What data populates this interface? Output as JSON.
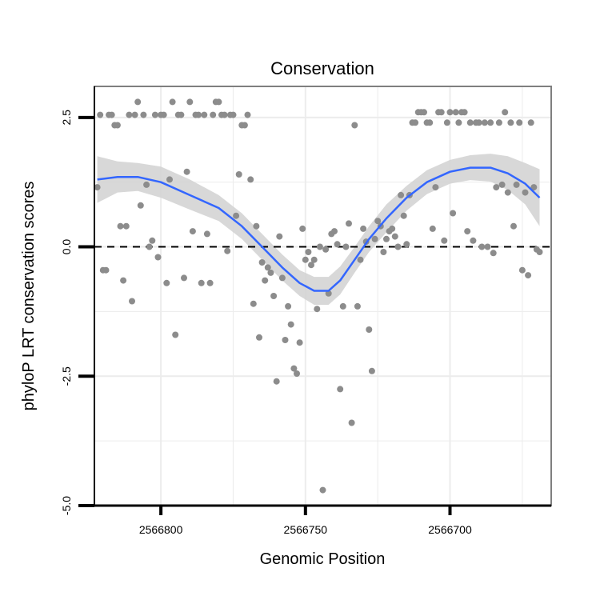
{
  "chart_data": {
    "type": "scatter",
    "title": "Conservation",
    "xlabel": "Genomic Position",
    "ylabel": "phyloP LRT conservation scores",
    "x_reversed": true,
    "xlim": [
      2566823,
      2566665
    ],
    "ylim": [
      -5.0,
      3.1
    ],
    "x_ticks": [
      2566800,
      2566750,
      2566700
    ],
    "x_tick_labels": [
      "2566800",
      "2566750",
      "2566700"
    ],
    "y_ticks": [
      2.5,
      0.0,
      -2.5,
      -5.0
    ],
    "y_tick_labels": [
      "2.5",
      "0.0",
      "-2.5",
      "-5.0"
    ],
    "grid": true,
    "reference_line_y": 0.0,
    "colors": {
      "points": "#8c8c8c",
      "smooth_line": "#3366ff",
      "ribbon": "#d4d4d4",
      "frame": "#7f7f7f",
      "grid": "#ececec"
    },
    "points": [
      [
        2566822,
        1.15
      ],
      [
        2566821,
        2.55
      ],
      [
        2566820,
        -0.45
      ],
      [
        2566819,
        -0.45
      ],
      [
        2566818,
        2.55
      ],
      [
        2566817,
        2.55
      ],
      [
        2566816,
        2.35
      ],
      [
        2566815,
        2.35
      ],
      [
        2566814,
        0.4
      ],
      [
        2566813,
        -0.65
      ],
      [
        2566812,
        0.4
      ],
      [
        2566811,
        2.55
      ],
      [
        2566810,
        -1.05
      ],
      [
        2566809,
        2.55
      ],
      [
        2566808,
        2.8
      ],
      [
        2566807,
        0.8
      ],
      [
        2566806,
        2.55
      ],
      [
        2566805,
        1.2
      ],
      [
        2566804,
        0.0
      ],
      [
        2566803,
        0.12
      ],
      [
        2566802,
        2.55
      ],
      [
        2566801,
        -0.2
      ],
      [
        2566800,
        2.55
      ],
      [
        2566799,
        2.55
      ],
      [
        2566798,
        -0.7
      ],
      [
        2566797,
        1.3
      ],
      [
        2566796,
        2.8
      ],
      [
        2566795,
        -1.7
      ],
      [
        2566794,
        2.55
      ],
      [
        2566793,
        2.55
      ],
      [
        2566792,
        -0.6
      ],
      [
        2566791,
        1.45
      ],
      [
        2566790,
        2.8
      ],
      [
        2566789,
        0.3
      ],
      [
        2566788,
        2.55
      ],
      [
        2566787,
        2.55
      ],
      [
        2566786,
        -0.7
      ],
      [
        2566785,
        2.55
      ],
      [
        2566784,
        0.25
      ],
      [
        2566783,
        -0.7
      ],
      [
        2566782,
        2.55
      ],
      [
        2566781,
        2.8
      ],
      [
        2566780,
        2.8
      ],
      [
        2566779,
        2.55
      ],
      [
        2566778,
        2.55
      ],
      [
        2566777,
        -0.08
      ],
      [
        2566776,
        2.55
      ],
      [
        2566775,
        2.55
      ],
      [
        2566774,
        0.6
      ],
      [
        2566773,
        1.4
      ],
      [
        2566772,
        2.35
      ],
      [
        2566771,
        2.35
      ],
      [
        2566770,
        2.55
      ],
      [
        2566769,
        1.3
      ],
      [
        2566768,
        -1.1
      ],
      [
        2566767,
        0.4
      ],
      [
        2566766,
        -1.75
      ],
      [
        2566765,
        -0.3
      ],
      [
        2566764,
        -0.65
      ],
      [
        2566763,
        -0.4
      ],
      [
        2566762,
        -0.5
      ],
      [
        2566761,
        -0.95
      ],
      [
        2566760,
        -2.6
      ],
      [
        2566759,
        0.2
      ],
      [
        2566758,
        -0.6
      ],
      [
        2566757,
        -1.8
      ],
      [
        2566756,
        -1.15
      ],
      [
        2566755,
        -1.5
      ],
      [
        2566754,
        -2.35
      ],
      [
        2566753,
        -2.45
      ],
      [
        2566752,
        -1.85
      ],
      [
        2566751,
        0.35
      ],
      [
        2566750,
        -0.25
      ],
      [
        2566749,
        -0.1
      ],
      [
        2566748,
        -0.35
      ],
      [
        2566747,
        -0.25
      ],
      [
        2566746,
        -1.2
      ],
      [
        2566745,
        0.0
      ],
      [
        2566744,
        -4.7
      ],
      [
        2566743,
        -0.05
      ],
      [
        2566742,
        -0.9
      ],
      [
        2566741,
        0.25
      ],
      [
        2566740,
        0.3
      ],
      [
        2566739,
        0.05
      ],
      [
        2566738,
        -2.75
      ],
      [
        2566737,
        -1.15
      ],
      [
        2566736,
        0.0
      ],
      [
        2566735,
        0.45
      ],
      [
        2566734,
        -3.4
      ],
      [
        2566733,
        2.35
      ],
      [
        2566732,
        -1.15
      ],
      [
        2566731,
        -0.25
      ],
      [
        2566730,
        0.35
      ],
      [
        2566729,
        0.1
      ],
      [
        2566728,
        -1.6
      ],
      [
        2566727,
        -2.4
      ],
      [
        2566726,
        0.15
      ],
      [
        2566725,
        0.5
      ],
      [
        2566724,
        0.4
      ],
      [
        2566723,
        -0.1
      ],
      [
        2566722,
        0.15
      ],
      [
        2566721,
        0.3
      ],
      [
        2566720,
        0.35
      ],
      [
        2566719,
        0.2
      ],
      [
        2566718,
        0.0
      ],
      [
        2566717,
        1.0
      ],
      [
        2566716,
        0.6
      ],
      [
        2566715,
        0.05
      ],
      [
        2566714,
        1.0
      ],
      [
        2566713,
        2.4
      ],
      [
        2566712,
        2.4
      ],
      [
        2566711,
        2.6
      ],
      [
        2566710,
        2.6
      ],
      [
        2566709,
        2.6
      ],
      [
        2566708,
        2.4
      ],
      [
        2566707,
        2.4
      ],
      [
        2566706,
        0.35
      ],
      [
        2566705,
        1.15
      ],
      [
        2566704,
        2.6
      ],
      [
        2566703,
        2.6
      ],
      [
        2566702,
        0.12
      ],
      [
        2566701,
        2.4
      ],
      [
        2566700,
        2.6
      ],
      [
        2566699,
        0.65
      ],
      [
        2566698,
        2.6
      ],
      [
        2566697,
        2.4
      ],
      [
        2566696,
        2.6
      ],
      [
        2566695,
        2.6
      ],
      [
        2566694,
        0.3
      ],
      [
        2566693,
        2.4
      ],
      [
        2566692,
        0.12
      ],
      [
        2566691,
        2.4
      ],
      [
        2566690,
        2.4
      ],
      [
        2566689,
        0.0
      ],
      [
        2566688,
        2.4
      ],
      [
        2566687,
        0.0
      ],
      [
        2566686,
        2.4
      ],
      [
        2566685,
        -0.12
      ],
      [
        2566684,
        1.15
      ],
      [
        2566683,
        2.4
      ],
      [
        2566682,
        1.2
      ],
      [
        2566681,
        2.6
      ],
      [
        2566680,
        1.05
      ],
      [
        2566679,
        2.4
      ],
      [
        2566678,
        0.4
      ],
      [
        2566677,
        1.2
      ],
      [
        2566676,
        2.4
      ],
      [
        2566675,
        -0.45
      ],
      [
        2566674,
        1.05
      ],
      [
        2566673,
        -0.55
      ],
      [
        2566672,
        2.4
      ],
      [
        2566671,
        1.15
      ],
      [
        2566670,
        -0.05
      ],
      [
        2566669,
        -0.1
      ]
    ],
    "smooth_line": [
      [
        2566822,
        1.3
      ],
      [
        2566815,
        1.35
      ],
      [
        2566808,
        1.35
      ],
      [
        2566800,
        1.25
      ],
      [
        2566790,
        1.0
      ],
      [
        2566780,
        0.75
      ],
      [
        2566772,
        0.4
      ],
      [
        2566765,
        0.0
      ],
      [
        2566758,
        -0.4
      ],
      [
        2566752,
        -0.7
      ],
      [
        2566747,
        -0.85
      ],
      [
        2566742,
        -0.85
      ],
      [
        2566738,
        -0.65
      ],
      [
        2566733,
        -0.25
      ],
      [
        2566728,
        0.15
      ],
      [
        2566722,
        0.55
      ],
      [
        2566715,
        0.95
      ],
      [
        2566708,
        1.25
      ],
      [
        2566700,
        1.45
      ],
      [
        2566693,
        1.53
      ],
      [
        2566686,
        1.53
      ],
      [
        2566680,
        1.42
      ],
      [
        2566674,
        1.22
      ],
      [
        2566669,
        0.95
      ]
    ],
    "ribbon_upper": [
      [
        2566822,
        1.75
      ],
      [
        2566815,
        1.65
      ],
      [
        2566808,
        1.62
      ],
      [
        2566800,
        1.55
      ],
      [
        2566790,
        1.3
      ],
      [
        2566780,
        1.0
      ],
      [
        2566772,
        0.65
      ],
      [
        2566765,
        0.25
      ],
      [
        2566758,
        -0.15
      ],
      [
        2566752,
        -0.45
      ],
      [
        2566747,
        -0.58
      ],
      [
        2566742,
        -0.58
      ],
      [
        2566738,
        -0.38
      ],
      [
        2566733,
        0.0
      ],
      [
        2566728,
        0.4
      ],
      [
        2566722,
        0.82
      ],
      [
        2566715,
        1.18
      ],
      [
        2566708,
        1.48
      ],
      [
        2566700,
        1.68
      ],
      [
        2566693,
        1.77
      ],
      [
        2566686,
        1.8
      ],
      [
        2566680,
        1.75
      ],
      [
        2566674,
        1.62
      ],
      [
        2566669,
        1.5
      ]
    ],
    "ribbon_lower": [
      [
        2566822,
        0.85
      ],
      [
        2566815,
        1.05
      ],
      [
        2566808,
        1.08
      ],
      [
        2566800,
        0.95
      ],
      [
        2566790,
        0.72
      ],
      [
        2566780,
        0.5
      ],
      [
        2566772,
        0.15
      ],
      [
        2566765,
        -0.25
      ],
      [
        2566758,
        -0.65
      ],
      [
        2566752,
        -0.95
      ],
      [
        2566747,
        -1.12
      ],
      [
        2566742,
        -1.12
      ],
      [
        2566738,
        -0.92
      ],
      [
        2566733,
        -0.5
      ],
      [
        2566728,
        -0.1
      ],
      [
        2566722,
        0.28
      ],
      [
        2566715,
        0.7
      ],
      [
        2566708,
        1.02
      ],
      [
        2566700,
        1.22
      ],
      [
        2566693,
        1.29
      ],
      [
        2566686,
        1.26
      ],
      [
        2566680,
        1.1
      ],
      [
        2566674,
        0.82
      ],
      [
        2566669,
        0.4
      ]
    ]
  }
}
